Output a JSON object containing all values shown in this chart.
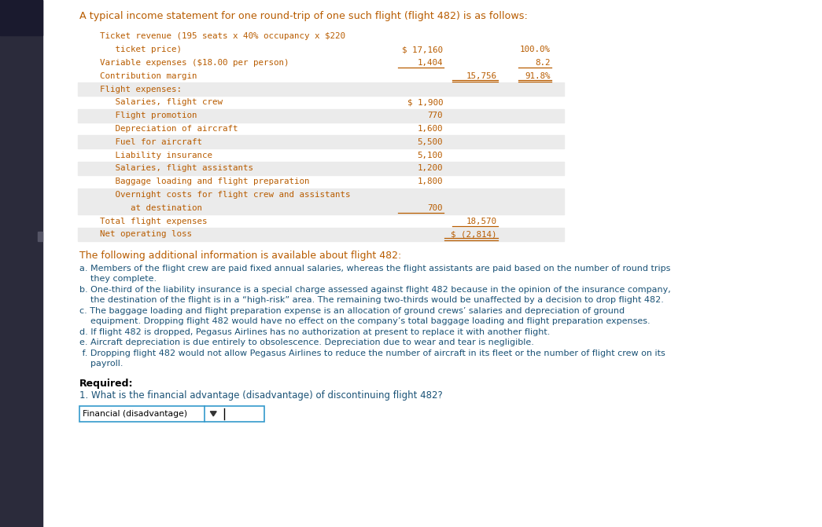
{
  "bg_color": "#ffffff",
  "text_color_orange": "#b85c00",
  "text_color_blue": "#1a5276",
  "text_color_black": "#000000",
  "title": "A typical income statement for one round-trip of one such flight (flight 482) is as follows:",
  "table_rows": [
    {
      "label": "    Ticket revenue (195 seats x 40% occupancy x $220",
      "indent": 0,
      "value1": "",
      "value2": "",
      "pct": "",
      "bg": "white",
      "bold": false
    },
    {
      "label": "       ticket price)",
      "indent": 0,
      "value1": "$ 17,160",
      "value2": "",
      "pct": "100.0%",
      "bg": "white",
      "bold": false
    },
    {
      "label": "    Variable expenses ($18.00 per person)",
      "indent": 0,
      "value1": "1,404",
      "value2": "",
      "pct": "8.2",
      "bg": "white",
      "bold": false,
      "ul1": true
    },
    {
      "label": "    Contribution margin",
      "indent": 0,
      "value1": "",
      "value2": "15,756",
      "pct": "91.8%",
      "bg": "white",
      "bold": false,
      "dul": true
    },
    {
      "label": "    Flight expenses:",
      "indent": 0,
      "value1": "",
      "value2": "",
      "pct": "",
      "bg": "gray",
      "bold": false
    },
    {
      "label": "       Salaries, flight crew",
      "indent": 1,
      "value1": "$ 1,900",
      "value2": "",
      "pct": "",
      "bg": "white",
      "bold": false
    },
    {
      "label": "       Flight promotion",
      "indent": 1,
      "value1": "770",
      "value2": "",
      "pct": "",
      "bg": "gray",
      "bold": false
    },
    {
      "label": "       Depreciation of aircraft",
      "indent": 1,
      "value1": "1,600",
      "value2": "",
      "pct": "",
      "bg": "white",
      "bold": false
    },
    {
      "label": "       Fuel for aircraft",
      "indent": 1,
      "value1": "5,500",
      "value2": "",
      "pct": "",
      "bg": "gray",
      "bold": false
    },
    {
      "label": "       Liability insurance",
      "indent": 1,
      "value1": "5,100",
      "value2": "",
      "pct": "",
      "bg": "white",
      "bold": false
    },
    {
      "label": "       Salaries, flight assistants",
      "indent": 1,
      "value1": "1,200",
      "value2": "",
      "pct": "",
      "bg": "gray",
      "bold": false
    },
    {
      "label": "       Baggage loading and flight preparation",
      "indent": 1,
      "value1": "1,800",
      "value2": "",
      "pct": "",
      "bg": "white",
      "bold": false
    },
    {
      "label": "       Overnight costs for flight crew and assistants",
      "indent": 1,
      "value1": "",
      "value2": "",
      "pct": "",
      "bg": "gray",
      "bold": false
    },
    {
      "label": "          at destination",
      "indent": 1,
      "value1": "700",
      "value2": "",
      "pct": "",
      "bg": "gray",
      "bold": false,
      "ul1": true
    },
    {
      "label": "    Total flight expenses",
      "indent": 0,
      "value1": "",
      "value2": "18,570",
      "pct": "",
      "bg": "white",
      "bold": false,
      "ul2": true
    },
    {
      "label": "    Net operating loss",
      "indent": 0,
      "value1": "",
      "value2": "$ (2,814)",
      "pct": "",
      "bg": "gray",
      "bold": false,
      "dul2": true
    }
  ],
  "additional_info_title": "The following additional information is available about flight 482:",
  "additional_items": [
    [
      "a.",
      " Members of the flight crew are paid fixed annual salaries, whereas the flight assistants are paid based on the number of round trips",
      "    they complete."
    ],
    [
      "b.",
      " One-third of the liability insurance is a special charge assessed against flight 482 because in the opinion of the insurance company,",
      "    the destination of the flight is in a “high-risk” area. The remaining two-thirds would be unaffected by a decision to drop flight 482."
    ],
    [
      "c.",
      " The baggage loading and flight preparation expense is an allocation of ground crews’ salaries and depreciation of ground",
      "    equipment. Dropping flight 482 would have no effect on the company’s total baggage loading and flight preparation expenses."
    ],
    [
      "d.",
      " If flight 482 is dropped, Pegasus Airlines has no authorization at present to replace it with another flight."
    ],
    [
      "e.",
      " Aircraft depreciation is due entirely to obsolescence. Depreciation due to wear and tear is negligible."
    ],
    [
      " f.",
      " Dropping flight 482 would not allow Pegasus Airlines to reduce the number of aircraft in its fleet or the number of flight crew on its",
      "    payroll."
    ]
  ],
  "required_title": "Required:",
  "required_item": "1. What is the financial advantage (disadvantage) of discontinuing flight 482?",
  "dropdown_label": "Financial (disadvantage)",
  "sidebar_color": "#2b2b3b",
  "sidebar_logo_color": "#1a1a2e",
  "left_accent_color": "#34495e",
  "gray_row_color": "#ebebeb"
}
